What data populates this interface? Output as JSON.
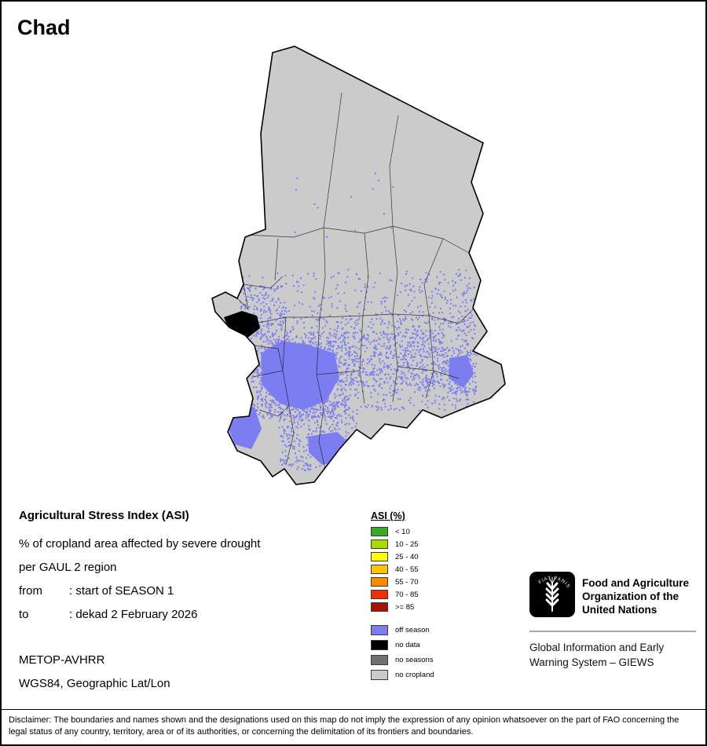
{
  "title": "Chad",
  "info": {
    "heading": "Agricultural Stress Index (ASI)",
    "line1": "% of cropland area affected by severe drought",
    "line2": "per GAUL 2 region",
    "from_label": "from",
    "from_value": ": start of SEASON 1",
    "to_label": "to",
    "to_value": ": dekad 2 February 2026",
    "sensor": "METOP-AVHRR",
    "projection": "WGS84, Geographic Lat/Lon"
  },
  "legend": {
    "title": "ASI (%)",
    "asi_classes": [
      {
        "label": "< 10",
        "color": "#3aa926"
      },
      {
        "label": "10 - 25",
        "color": "#aadc00"
      },
      {
        "label": "25 - 40",
        "color": "#ffff00"
      },
      {
        "label": "40 - 55",
        "color": "#ffc300"
      },
      {
        "label": "55 - 70",
        "color": "#ff8a00"
      },
      {
        "label": "70 - 85",
        "color": "#ef3000"
      },
      {
        "label": ">= 85",
        "color": "#a61400"
      }
    ],
    "categories": [
      {
        "label": "off season",
        "color": "#7d7df2"
      },
      {
        "label": "no data",
        "color": "#000000"
      },
      {
        "label": "no seasons",
        "color": "#6f6f6f"
      },
      {
        "label": "no cropland",
        "color": "#cbcbcb"
      }
    ]
  },
  "fao": {
    "org_name": "Food and Agriculture\nOrganization of the\nUnited Nations",
    "giews": "Global Information and Early\nWarning System – GIEWS",
    "logo_motto": "FIAT PANIS"
  },
  "map": {
    "country": "Chad",
    "country_fill": "#cbcbcb",
    "border_color": "#000000",
    "admin_line_color": "#1a1a1a",
    "off_season_color": "#7d7df2",
    "no_data_color": "#000000"
  },
  "disclaimer": "Disclaimer: The boundaries and names shown and the designations used on this map do not imply the expression of any opinion whatsoever on the part of FAO concerning the legal status of any country, territory, area or of its authorities, or concerning the delimitation of its frontiers and boundaries."
}
